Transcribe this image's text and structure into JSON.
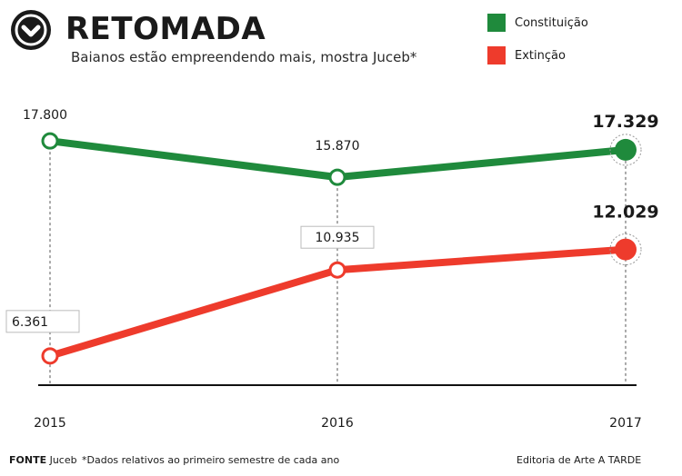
{
  "header": {
    "title": "RETOMADA",
    "subtitle": "Baianos estão empreendendo mais, mostra Juceb*"
  },
  "colors": {
    "constituicao": "#1f8a3c",
    "extincao": "#ee3b2c",
    "text": "#1a1a1a"
  },
  "chart_data": {
    "type": "line",
    "x": [
      "2015",
      "2016",
      "2017"
    ],
    "ylim": [
      5000,
      19500
    ],
    "grid": false,
    "legend_position": "top-right",
    "series": [
      {
        "name": "Constituição",
        "color": "#1f8a3c",
        "values": [
          17800,
          15870,
          17329
        ],
        "labels": [
          "17.800",
          "15.870",
          "17.329"
        ]
      },
      {
        "name": "Extinção",
        "color": "#ee3b2c",
        "values": [
          6361,
          10935,
          12029
        ],
        "labels": [
          "6.361",
          "10.935",
          "12.029"
        ]
      }
    ]
  },
  "footer": {
    "source_label": "FONTE",
    "source_value": "Juceb",
    "note": "*Dados relativos ao primeiro semestre de cada ano",
    "credit": "Editoria de Arte A TARDE"
  }
}
